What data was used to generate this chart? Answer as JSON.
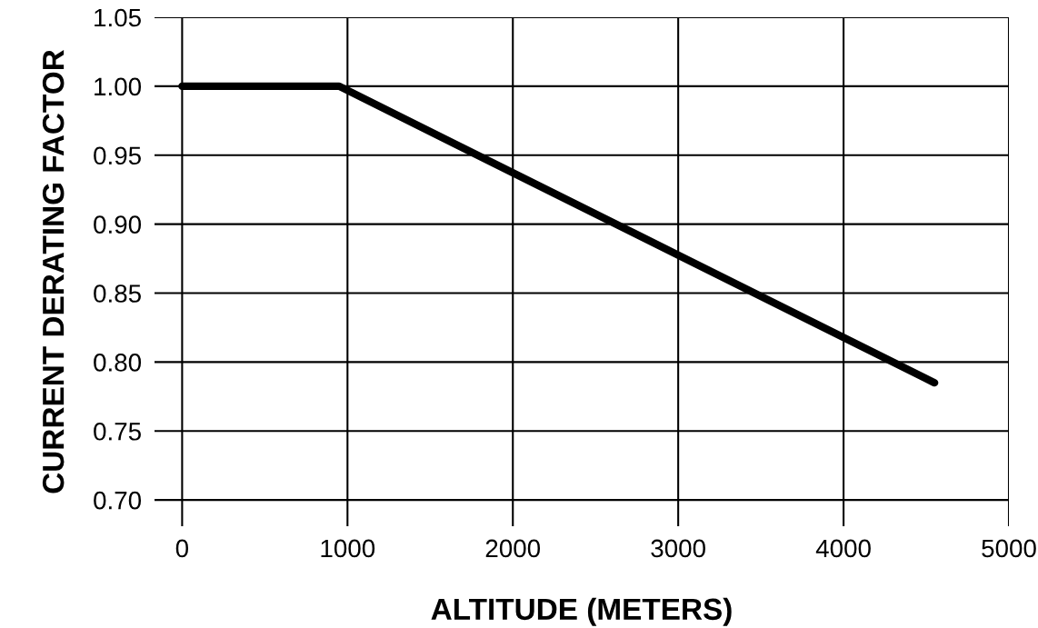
{
  "chart_data": {
    "type": "line",
    "xlabel": "ALTITUDE (METERS)",
    "ylabel": "CURRENT DERATING FACTOR",
    "x": [
      0,
      950,
      4550
    ],
    "series": [
      {
        "color": "#000000",
        "values": [
          1.0,
          1.0,
          0.785
        ]
      }
    ],
    "xlim": [
      -167,
      5000
    ],
    "ylim": [
      0.681,
      1.05
    ],
    "xticks": [
      0,
      1000,
      2000,
      3000,
      4000,
      5000
    ],
    "yticks": [
      {
        "value": 0.7,
        "label": "0.70"
      },
      {
        "value": 0.75,
        "label": "0.75"
      },
      {
        "value": 0.8,
        "label": "0.80"
      },
      {
        "value": 0.85,
        "label": "0.85"
      },
      {
        "value": 0.9,
        "label": "0.90"
      },
      {
        "value": 0.95,
        "label": "0.95"
      },
      {
        "value": 1.0,
        "label": "1.00"
      },
      {
        "value": 1.05,
        "label": "1.05"
      }
    ],
    "grid": true,
    "marker": "none",
    "line_style": "solid"
  }
}
